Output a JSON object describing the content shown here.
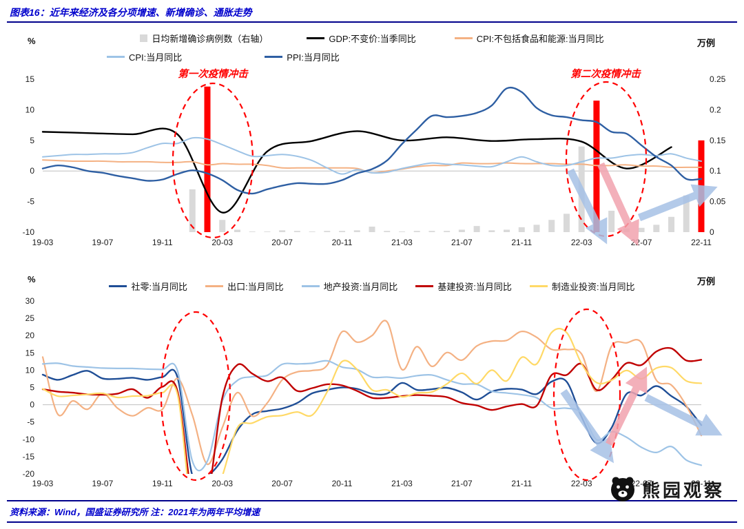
{
  "header": {
    "title": "图表16：近年来经济及各分项增速、新增确诊、通胀走势"
  },
  "footer": {
    "text": "资料来源：Wind，国盛证券研究所  注：2021年为两年平均增速"
  },
  "watermark": {
    "text": "熊园观察",
    "logo": "bear-logo"
  },
  "colors": {
    "title_blue": "#0000CC",
    "rule_navy": "#00008B",
    "annotation_red": "#FF0000",
    "zero_line": "#BFBFBF",
    "bar_gray": "#D9D9D9",
    "bar_red": "#FF0000",
    "arrow_blue": "#A6C1E6",
    "arrow_pink": "#F1A3AE"
  },
  "chart_data": [
    {
      "type": "line+bar",
      "left_axis": {
        "label": "%",
        "min": -10,
        "max": 15,
        "ticks": [
          "15",
          "10",
          "5",
          "0",
          "-5",
          "-10"
        ]
      },
      "right_axis": {
        "label": "万例",
        "min": 0,
        "max": 0.25,
        "ticks": [
          "0.25",
          "0.2",
          "0.15",
          "0.1",
          "0.05",
          "0"
        ]
      },
      "x_ticks": [
        "19-03",
        "19-07",
        "19-11",
        "20-03",
        "20-07",
        "20-11",
        "21-03",
        "21-07",
        "21-11",
        "22-03",
        "22-07",
        "22-11"
      ],
      "months": [
        "19-03",
        "19-04",
        "19-05",
        "19-06",
        "19-07",
        "19-08",
        "19-09",
        "19-10",
        "19-11",
        "19-12",
        "20-01",
        "20-02",
        "20-03",
        "20-04",
        "20-05",
        "20-06",
        "20-07",
        "20-08",
        "20-09",
        "20-10",
        "20-11",
        "20-12",
        "21-01",
        "21-02",
        "21-03",
        "21-04",
        "21-05",
        "21-06",
        "21-07",
        "21-08",
        "21-09",
        "21-10",
        "21-11",
        "21-12",
        "22-01",
        "22-02",
        "22-03",
        "22-04",
        "22-05",
        "22-06",
        "22-07",
        "22-08",
        "22-09",
        "22-10",
        "22-11"
      ],
      "bars": {
        "name": "日均新增确诊病例数（右轴）",
        "axis": "right",
        "color": "#D9D9D9",
        "highlight_color": "#FF0000",
        "highlight_months": [
          "20-02",
          "22-04",
          "22-11"
        ],
        "values": [
          0,
          0,
          0,
          0,
          0,
          0,
          0,
          0,
          0,
          0,
          0.07,
          0.238,
          0.02,
          0.004,
          0.001,
          0.001,
          0.003,
          0.002,
          0.001,
          0.002,
          0.002,
          0.003,
          0.009,
          0.002,
          0.001,
          0.002,
          0.002,
          0.002,
          0.004,
          0.01,
          0.003,
          0.004,
          0.008,
          0.012,
          0.02,
          0.03,
          0.14,
          0.215,
          0.035,
          0.006,
          0.007,
          0.012,
          0.025,
          0.06,
          0.15
        ]
      },
      "series": [
        {
          "name": "GDP:不变价:当季同比",
          "color": "#000000",
          "x": [
            "19-03",
            "19-06",
            "19-09",
            "19-12",
            "20-03",
            "20-06",
            "20-09",
            "20-12",
            "21-03",
            "21-06",
            "21-09",
            "21-12",
            "22-03",
            "22-06",
            "22-09"
          ],
          "values": [
            6.4,
            6.2,
            6.0,
            6.0,
            -6.8,
            3.2,
            4.9,
            6.5,
            5.0,
            5.5,
            4.9,
            5.2,
            4.8,
            0.4,
            3.9
          ]
        },
        {
          "name": "CPI:不包括食品和能源:当月同比",
          "color": "#F4B183",
          "values": [
            1.8,
            1.7,
            1.6,
            1.6,
            1.6,
            1.5,
            1.5,
            1.5,
            1.4,
            1.4,
            1.5,
            1.0,
            1.2,
            1.1,
            1.1,
            0.9,
            0.5,
            0.5,
            0.5,
            0.5,
            0.5,
            0.4,
            -0.3,
            0,
            0.3,
            0.7,
            0.9,
            0.9,
            1.3,
            1.2,
            1.2,
            1.3,
            1.2,
            1.2,
            1.2,
            1.1,
            1.1,
            0.9,
            0.9,
            1.0,
            0.8,
            0.8,
            0.6,
            0.6,
            0.6
          ]
        },
        {
          "name": "CPI:当月同比",
          "color": "#9DC3E6",
          "values": [
            2.3,
            2.5,
            2.7,
            2.7,
            2.8,
            2.8,
            3.0,
            3.8,
            4.5,
            4.5,
            5.4,
            5.2,
            4.3,
            3.3,
            2.4,
            2.5,
            2.7,
            2.4,
            1.7,
            0.5,
            -0.5,
            0.2,
            -0.3,
            -0.2,
            0.4,
            0.9,
            1.3,
            1.1,
            1.0,
            0.8,
            0.7,
            1.5,
            2.3,
            1.5,
            0.9,
            0.9,
            1.5,
            2.1,
            2.1,
            2.5,
            2.7,
            2.5,
            2.8,
            2.1,
            1.6
          ]
        },
        {
          "name": "PPI:当月同比",
          "color": "#2E5FA3",
          "values": [
            0.4,
            0.9,
            0.6,
            0,
            -0.3,
            -0.8,
            -1.2,
            -1.6,
            -1.4,
            -0.5,
            0.1,
            -0.4,
            -1.5,
            -3.1,
            -3.7,
            -3.0,
            -2.4,
            -2.0,
            -2.1,
            -2.1,
            -1.5,
            -0.4,
            0.3,
            1.7,
            4.4,
            6.8,
            9.0,
            8.8,
            9.0,
            9.5,
            10.7,
            13.5,
            12.9,
            10.3,
            9.1,
            8.8,
            8.3,
            8.0,
            6.4,
            6.1,
            4.2,
            2.3,
            0.9,
            -1.3,
            -1.3
          ]
        }
      ],
      "annotations": [
        {
          "text": "第一次疫情冲击"
        },
        {
          "text": "第二次疫情冲击"
        }
      ]
    },
    {
      "type": "line",
      "left_axis": {
        "label": "%",
        "min": -20,
        "max": 30,
        "ticks": [
          "30",
          "25",
          "20",
          "15",
          "10",
          "5",
          "0",
          "-5",
          "-10",
          "-15",
          "-20"
        ]
      },
      "right_axis": {
        "label": "万例"
      },
      "x_ticks": [
        "19-03",
        "19-07",
        "19-11",
        "20-03",
        "20-07",
        "20-11",
        "21-03",
        "21-07",
        "21-11",
        "22-03",
        "22-07",
        "22-11"
      ],
      "months": [
        "19-03",
        "19-04",
        "19-05",
        "19-06",
        "19-07",
        "19-08",
        "19-09",
        "19-10",
        "19-11",
        "19-12",
        "20-01",
        "20-02",
        "20-03",
        "20-04",
        "20-05",
        "20-06",
        "20-07",
        "20-08",
        "20-09",
        "20-10",
        "20-11",
        "20-12",
        "21-01",
        "21-02",
        "21-03",
        "21-04",
        "21-05",
        "21-06",
        "21-07",
        "21-08",
        "21-09",
        "21-10",
        "21-11",
        "21-12",
        "22-01",
        "22-02",
        "22-03",
        "22-04",
        "22-05",
        "22-06",
        "22-07",
        "22-08",
        "22-09",
        "22-10",
        "22-11"
      ],
      "series": [
        {
          "name": "社零:当月同比",
          "color": "#1F4E96",
          "values": [
            8.7,
            7.2,
            8.6,
            9.8,
            7.6,
            7.5,
            7.8,
            7.2,
            8.0,
            8.0,
            -20.5,
            -20.5,
            -15.8,
            -7.5,
            -2.8,
            -1.8,
            -1.1,
            0.5,
            3.3,
            4.3,
            5.0,
            4.6,
            3.2,
            3.2,
            6.3,
            4.3,
            4.5,
            4.9,
            3.6,
            1.5,
            3.8,
            4.6,
            4.4,
            3.1,
            6.7,
            6.7,
            -3.5,
            -11.1,
            -6.7,
            3.1,
            2.7,
            5.4,
            2.5,
            -0.5,
            -5.9
          ]
        },
        {
          "name": "出口:当月同比",
          "color": "#F4B183",
          "values": [
            13.8,
            -2.7,
            1.1,
            -1.3,
            3.3,
            -1.0,
            -3.2,
            -0.9,
            -1.3,
            7.6,
            -3.0,
            -17.2,
            -6.6,
            3.5,
            -3.3,
            0.5,
            7.2,
            9.5,
            9.9,
            11.4,
            21.1,
            18.1,
            20.0,
            24.0,
            10.2,
            16.8,
            11.1,
            15.1,
            12.9,
            17.0,
            18.4,
            18.6,
            21.2,
            19.5,
            16.0,
            16.0,
            14.7,
            3.9,
            16.9,
            17.9,
            18.0,
            7.1,
            5.7,
            -0.3,
            -8.9
          ]
        },
        {
          "name": "地产投资:当月同比",
          "color": "#9DC3E6",
          "values": [
            11.8,
            12.0,
            11.2,
            10.9,
            10.6,
            10.5,
            10.5,
            10.3,
            10.2,
            9.9,
            -16.3,
            -16.3,
            1.1,
            7.0,
            8.1,
            8.5,
            11.7,
            11.8,
            12.0,
            12.7,
            10.9,
            10.2,
            8.0,
            8.0,
            7.7,
            8.4,
            8.6,
            7.2,
            6.0,
            5.9,
            3.9,
            3.4,
            2.9,
            2.0,
            -1.0,
            -1.0,
            -2.4,
            -10.1,
            -7.8,
            -9.4,
            -12.3,
            -13.8,
            -12.1,
            -16.0,
            -17.5
          ]
        },
        {
          "name": "基建投资:当月同比",
          "color": "#C00000",
          "values": [
            4.5,
            3.8,
            3.5,
            3.0,
            2.9,
            3.2,
            4.5,
            2.0,
            5.2,
            4.0,
            -26.9,
            -26.9,
            2.0,
            11.5,
            9.0,
            6.8,
            7.9,
            4.0,
            4.8,
            5.9,
            5.6,
            4.0,
            2.0,
            2.0,
            2.5,
            2.8,
            2.6,
            2.2,
            0.5,
            -0.2,
            -1.5,
            -0.5,
            0.2,
            -0.3,
            8.6,
            8.6,
            11.8,
            4.3,
            7.2,
            12.0,
            11.5,
            15.4,
            16.3,
            12.8,
            13.0
          ]
        },
        {
          "name": "制造业投资:当月同比",
          "color": "#FFD966",
          "values": [
            4.6,
            2.5,
            2.7,
            3.0,
            3.3,
            2.1,
            2.5,
            2.6,
            3.5,
            3.1,
            -31.5,
            -31.5,
            -20.6,
            -6.7,
            -5.3,
            -3.5,
            -3.1,
            -2.1,
            -3.0,
            3.7,
            12.5,
            10.2,
            4.3,
            4.3,
            2.3,
            3.4,
            3.7,
            6.0,
            9.1,
            6.1,
            10.0,
            6.9,
            13.7,
            11.8,
            20.9,
            20.9,
            11.9,
            6.4,
            7.1,
            9.9,
            7.5,
            10.6,
            10.7,
            6.9,
            6.2
          ]
        }
      ]
    }
  ]
}
